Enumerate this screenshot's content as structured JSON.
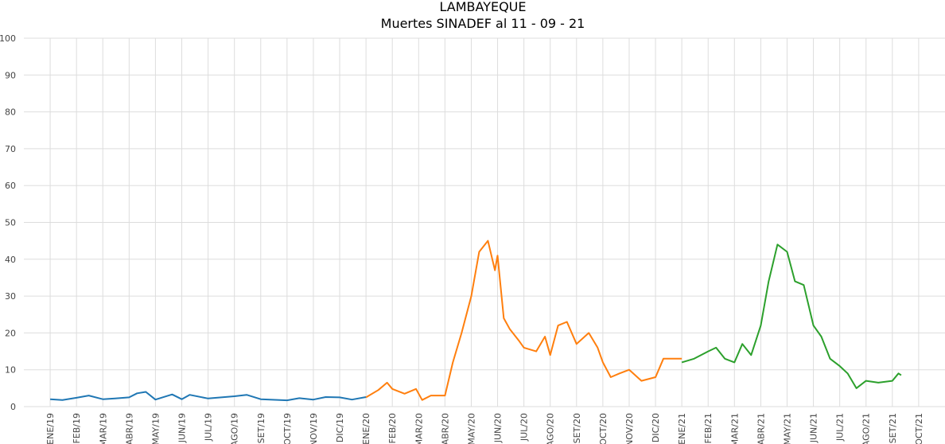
{
  "chart_data": {
    "type": "line",
    "title": "LAMBAYEQUE",
    "subtitle": "Muertes SINADEF al 11 - 09 - 21",
    "xlabel": "",
    "ylabel": "",
    "ylim": [
      0,
      100
    ],
    "yticks": [
      0,
      10,
      20,
      30,
      40,
      50,
      60,
      70,
      80,
      90,
      100
    ],
    "xlim": [
      "2018-12",
      "2021-10"
    ],
    "xticks": [
      "ENE/19",
      "FEB/19",
      "MAR/19",
      "ABR/19",
      "MAY/19",
      "JUN/19",
      "JUL/19",
      "AGO/19",
      "SET/19",
      "OCT/19",
      "NOV/19",
      "DIC/19",
      "ENE/20",
      "FEB/20",
      "MAR/20",
      "ABR/20",
      "MAY/20",
      "JUN/20",
      "JUL/20",
      "AGO/20",
      "SET/20",
      "OCT/20",
      "NOV/20",
      "DIC/20",
      "ENE/21",
      "FEB/21",
      "MAR/21",
      "ABR/21",
      "MAY/21",
      "JUN/21",
      "JUL/21",
      "AGO/21",
      "SET/21",
      "OCT/21"
    ],
    "grid": true,
    "series": [
      {
        "color": "#1f77b4",
        "x": [
          "2019-01",
          "2019-01-15",
          "2019-02",
          "2019-02-15",
          "2019-03",
          "2019-03-15",
          "2019-04",
          "2019-04-10",
          "2019-04-20",
          "2019-05",
          "2019-05-20",
          "2019-06",
          "2019-06-10",
          "2019-07",
          "2019-08",
          "2019-08-15",
          "2019-09",
          "2019-10",
          "2019-10-15",
          "2019-11",
          "2019-11-15",
          "2019-12",
          "2019-12-15",
          "2020-01"
        ],
        "values": [
          2.0,
          1.8,
          2.4,
          3.0,
          2.0,
          2.2,
          2.5,
          3.6,
          4.0,
          1.9,
          3.3,
          2.0,
          3.2,
          2.2,
          2.8,
          3.2,
          2.0,
          1.7,
          2.3,
          1.9,
          2.6,
          2.5,
          1.9,
          2.6
        ]
      },
      {
        "color": "#ff7f0e",
        "x": [
          "2020-01",
          "2020-01-15",
          "2020-01-25",
          "2020-02",
          "2020-02-15",
          "2020-02-28",
          "2020-03-05",
          "2020-03-15",
          "2020-04",
          "2020-04-10",
          "2020-04-20",
          "2020-05",
          "2020-05-10",
          "2020-05-20",
          "2020-05-28",
          "2020-06",
          "2020-06-08",
          "2020-06-15",
          "2020-06-25",
          "2020-07",
          "2020-07-15",
          "2020-07-25",
          "2020-08",
          "2020-08-10",
          "2020-08-20",
          "2020-09",
          "2020-09-15",
          "2020-09-25",
          "2020-10",
          "2020-10-10",
          "2020-10-20",
          "2020-11",
          "2020-11-15",
          "2020-12",
          "2020-12-10",
          "2020-12-20",
          "2021-01"
        ],
        "values": [
          2.5,
          4.5,
          6.5,
          4.8,
          3.5,
          4.8,
          1.8,
          3.0,
          3.0,
          12.0,
          20.0,
          30.0,
          42.0,
          45.0,
          37.0,
          41.0,
          24.0,
          21.0,
          18.0,
          16.0,
          15.0,
          19.0,
          14.0,
          22.0,
          23.0,
          17.0,
          20.0,
          16.0,
          12.0,
          8.0,
          9.0,
          10.0,
          7.0,
          8.0,
          13.0,
          13.0,
          13.0
        ]
      },
      {
        "color": "#2ca02c",
        "x": [
          "2021-01",
          "2021-01-15",
          "2021-02",
          "2021-02-10",
          "2021-02-20",
          "2021-03",
          "2021-03-10",
          "2021-03-20",
          "2021-04",
          "2021-04-10",
          "2021-04-20",
          "2021-05",
          "2021-05-10",
          "2021-05-20",
          "2021-06",
          "2021-06-10",
          "2021-06-20",
          "2021-07",
          "2021-07-10",
          "2021-07-20",
          "2021-08",
          "2021-08-15",
          "2021-09",
          "2021-09-08",
          "2021-09-11"
        ],
        "values": [
          12.0,
          13.0,
          15.0,
          16.0,
          13.0,
          12.0,
          17.0,
          14.0,
          22.0,
          34.0,
          44.0,
          42.0,
          34.0,
          33.0,
          22.0,
          19.0,
          13.0,
          11.0,
          9.0,
          5.0,
          7.0,
          6.5,
          7.0,
          9.0,
          8.5
        ]
      }
    ]
  }
}
